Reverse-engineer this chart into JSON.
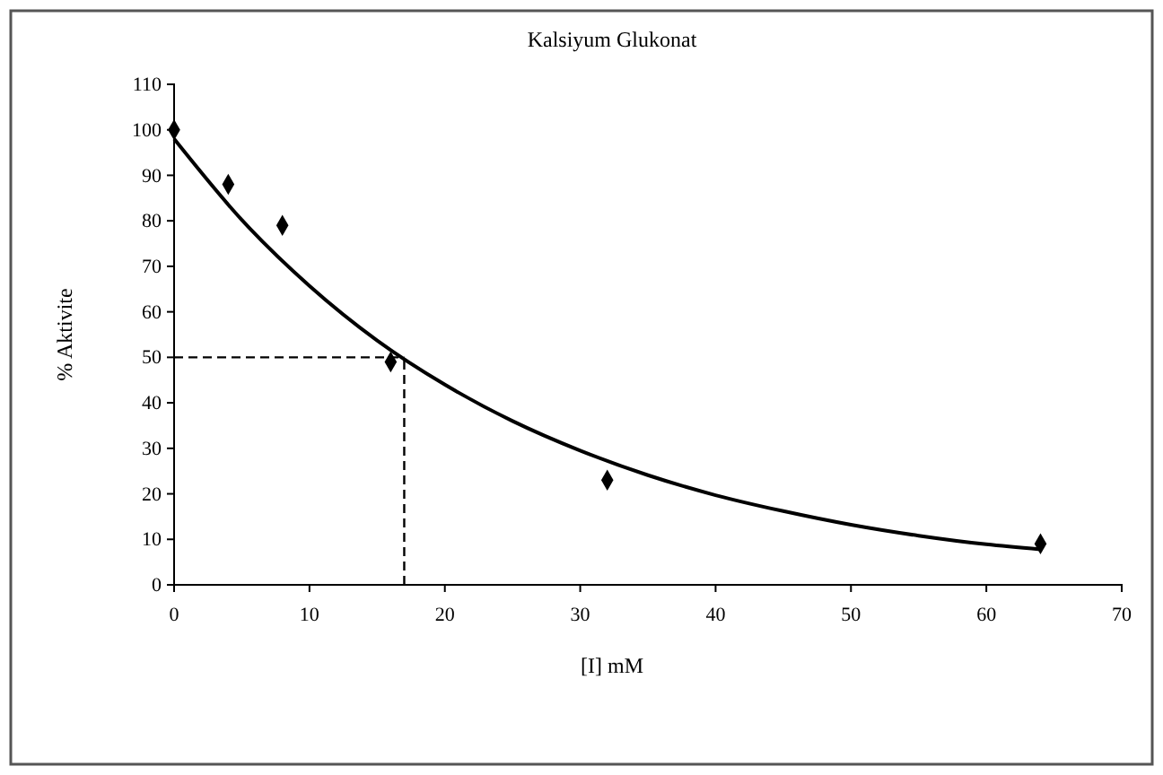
{
  "chart_data": {
    "type": "scatter",
    "title": "Kalsiyum Glukonat",
    "xlabel": "[I] mM",
    "ylabel": "% Aktivite",
    "xlim": [
      0,
      70
    ],
    "xticks": [
      0,
      10,
      20,
      30,
      40,
      50,
      60,
      70
    ],
    "ylim": [
      0,
      110
    ],
    "yticks": [
      0,
      10,
      20,
      30,
      40,
      50,
      60,
      70,
      80,
      90,
      100,
      110
    ],
    "grid": false,
    "marker": "diamond",
    "series": [
      {
        "color": "#000000",
        "x": [
          0,
          4,
          8,
          16,
          32,
          64
        ],
        "values": [
          100,
          88,
          79,
          49,
          23,
          9
        ]
      },
      {
        "type": "line",
        "color": "#000000",
        "marker": "none",
        "line_style": "solid",
        "x": [
          0,
          5,
          10,
          15,
          20,
          25,
          30,
          35,
          40,
          45,
          50,
          55,
          60,
          64
        ],
        "values": [
          98,
          80.2,
          65.7,
          53.7,
          44,
          36,
          29.5,
          24.1,
          19.7,
          16.2,
          13.2,
          10.8,
          8.9,
          7.8
        ]
      }
    ],
    "ref_lines": [
      {
        "axis": "y",
        "value": 50,
        "line_style": "dashed",
        "color": "#000000"
      },
      {
        "axis": "x",
        "value": 17,
        "line_style": "dashed",
        "color": "#000000"
      }
    ]
  }
}
